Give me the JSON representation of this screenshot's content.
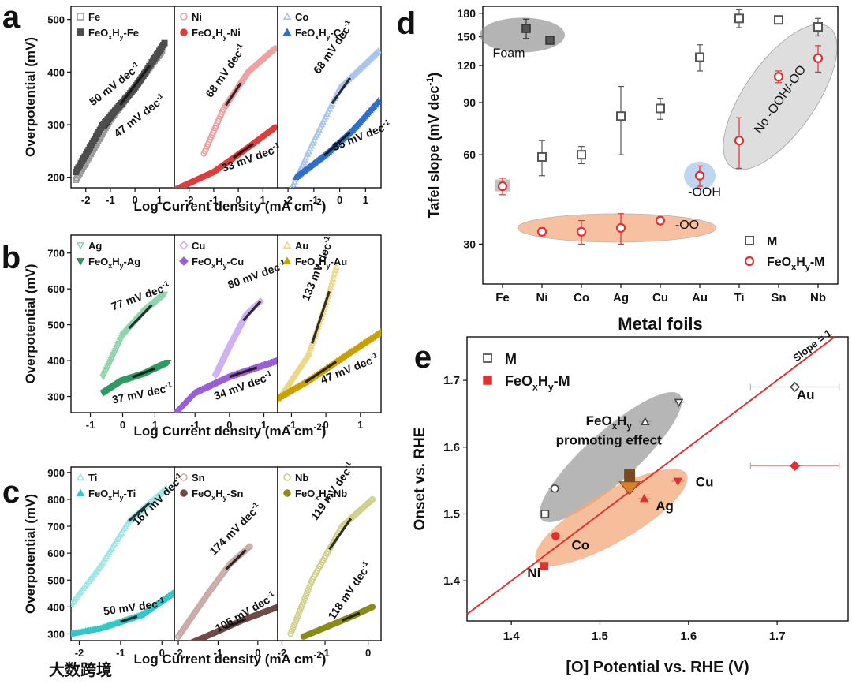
{
  "panels": [
    {
      "letter": "a",
      "ylabel": "Overpotential (mV)",
      "xlabel": "Log Current density (mA cm⁻²)",
      "yticks": [
        200,
        300,
        400,
        500
      ],
      "ylim": [
        180,
        525
      ],
      "subplots": [
        {
          "m": "Fe",
          "f": "FeOxHy-Fe",
          "c": "#4d4d4d",
          "cl": "#9a9a9a",
          "xlim": [
            -2.6,
            1.6
          ],
          "xticks": [
            -2,
            -1,
            0,
            1
          ],
          "s1": {
            "x": [
              -2.4,
              -1.0,
              0.3,
              1.1
            ],
            "y": [
              195,
              310,
              390,
              440
            ]
          },
          "s2": {
            "x": [
              -2.4,
              -1.3,
              0.0,
              1.2
            ],
            "y": [
              210,
              300,
              370,
              455
            ]
          },
          "lab1": {
            "t": "50 mV dec⁻¹",
            "x": -1.7,
            "y": 335,
            "a": -38
          },
          "lab2": {
            "t": "47 mV dec⁻¹",
            "x": -0.7,
            "y": 275,
            "a": -38
          },
          "fit1": [
            -1.2,
            0.0
          ],
          "fit2": [
            -0.6,
            0.6
          ]
        },
        {
          "m": "Ni",
          "f": "FeOxHy-Ni",
          "c": "#e03c3c",
          "cl": "#f0a0a0",
          "xlim": [
            -2.6,
            1.6
          ],
          "xticks": [
            -2,
            -1,
            0,
            1
          ],
          "s1": {
            "x": [
              -1.4,
              -0.6,
              0.4,
              1.5
            ],
            "y": [
              245,
              330,
              400,
              445
            ]
          },
          "s2": {
            "x": [
              -2.5,
              -1.0,
              0.5,
              1.5
            ],
            "y": [
              178,
              210,
              260,
              295
            ]
          },
          "lab1": {
            "t": "68 mV dec⁻¹",
            "x": -1.1,
            "y": 350,
            "a": -55
          },
          "lab2": {
            "t": "33 mV dec⁻¹",
            "x": -0.6,
            "y": 210,
            "a": -20
          },
          "fit1": [
            -0.5,
            0.1
          ],
          "fit2": [
            -0.2,
            0.6
          ]
        },
        {
          "m": "Co",
          "f": "FeOxHy-Co",
          "c": "#2e6fcc",
          "cl": "#a8c4ec",
          "xlim": [
            -2.4,
            1.6
          ],
          "xticks": [
            -2,
            -1,
            0,
            1
          ],
          "s1": {
            "x": [
              -2.0,
              -1.0,
              0.0,
              1.5
            ],
            "y": [
              165,
              270,
              370,
              440
            ]
          },
          "s2": {
            "x": [
              -1.7,
              -0.5,
              0.5,
              1.5
            ],
            "y": [
              200,
              245,
              290,
              345
            ]
          },
          "lab1": {
            "t": "68 mV dec⁻¹",
            "x": -0.8,
            "y": 395,
            "a": -55
          },
          "lab2": {
            "t": "35 mV dec⁻¹",
            "x": -0.2,
            "y": 250,
            "a": -22
          },
          "fit1": [
            -0.3,
            0.4
          ],
          "fit2": [
            -0.6,
            0.4
          ]
        }
      ]
    },
    {
      "letter": "b",
      "ylabel": "Overpotential (mV)",
      "xlabel": "Log Current density (mA cm⁻²)",
      "yticks": [
        300,
        400,
        500,
        600,
        700
      ],
      "ylim": [
        255,
        750
      ],
      "subplots": [
        {
          "m": "Ag",
          "f": "FeOxHy-Ag",
          "c": "#2e9960",
          "cl": "#8fd4ad",
          "xlim": [
            -1.6,
            1.6
          ],
          "xticks": [
            -1,
            0,
            1
          ],
          "s1": {
            "x": [
              -0.6,
              0.0,
              0.7,
              1.3
            ],
            "y": [
              355,
              470,
              540,
              585
            ]
          },
          "s2": {
            "x": [
              -0.6,
              0.0,
              0.7,
              1.4
            ],
            "y": [
              310,
              345,
              365,
              395
            ]
          },
          "lab1": {
            "t": "77 mV dec⁻¹",
            "x": -0.3,
            "y": 540,
            "a": -20
          },
          "lab2": {
            "t": "37 mV dec⁻¹",
            "x": -0.3,
            "y": 280,
            "a": -12
          },
          "fit1": [
            0.2,
            0.9
          ],
          "fit2": [
            0.3,
            1.0
          ]
        },
        {
          "m": "Cu",
          "f": "FeOxHy-Cu",
          "c": "#9a5fd6",
          "cl": "#cfb0f0",
          "xlim": [
            -1.6,
            1.4
          ],
          "xticks": [
            -1,
            0,
            1
          ],
          "s1": {
            "x": [
              -0.4,
              0.0,
              0.5,
              0.9
            ],
            "y": [
              360,
              440,
              530,
              565
            ]
          },
          "s2": {
            "x": [
              -1.6,
              -1.0,
              0.0,
              1.4
            ],
            "y": [
              250,
              310,
              355,
              400
            ]
          },
          "lab1": {
            "t": "80 mV dec⁻¹",
            "x": 0.0,
            "y": 600,
            "a": -20
          },
          "lab2": {
            "t": "34 mV dec⁻¹",
            "x": -0.4,
            "y": 290,
            "a": -20
          },
          "fit1": [
            0.4,
            0.9
          ],
          "fit2": [
            0.0,
            0.8
          ]
        },
        {
          "m": "Au",
          "f": "FeOxHy-Au",
          "c": "#c9a000",
          "cl": "#ead788",
          "xlim": [
            -1.4,
            1.6
          ],
          "xticks": [
            -1,
            0,
            1
          ],
          "s1": {
            "x": [
              -1.4,
              -0.5,
              0.0,
              0.3
            ],
            "y": [
              290,
              420,
              560,
              660
            ]
          },
          "s2": {
            "x": [
              -1.4,
              -0.5,
              0.5,
              1.6
            ],
            "y": [
              295,
              345,
              410,
              480
            ]
          },
          "lab1": {
            "t": "133 mV dec⁻¹",
            "x": -0.5,
            "y": 565,
            "a": -68
          },
          "lab2": {
            "t": "47 mV dec⁻¹",
            "x": -0.1,
            "y": 335,
            "a": -22
          },
          "fit1": [
            -0.4,
            0.1
          ],
          "fit2": [
            -0.6,
            0.3
          ]
        }
      ]
    },
    {
      "letter": "c",
      "ylabel": "Overpotential (mV)",
      "xlabel": "Log Current density (mA cm⁻²)",
      "yticks": [
        300,
        400,
        500,
        600,
        700,
        800,
        900
      ],
      "ylim": [
        275,
        920
      ],
      "subplots": [
        {
          "m": "Ti",
          "f": "FeOxHy-Ti",
          "c": "#33c7c7",
          "cl": "#9ee5e5",
          "xlim": [
            -2.2,
            0.3
          ],
          "xticks": [
            -2,
            -1,
            0
          ],
          "s1": {
            "x": [
              -2.2,
              -1.5,
              -0.8,
              0.1
            ],
            "y": [
              410,
              550,
              720,
              840
            ]
          },
          "s2": {
            "x": [
              -2.2,
              -1.5,
              -0.5,
              0.3
            ],
            "y": [
              300,
              320,
              370,
              455
            ]
          },
          "lab1": {
            "t": "167 mV dec⁻¹",
            "x": -0.6,
            "y": 700,
            "a": -45
          },
          "lab2": {
            "t": "50 mV dec⁻¹",
            "x": -1.4,
            "y": 370,
            "a": -8
          },
          "fit1": [
            -0.8,
            -0.3
          ],
          "fit2": [
            -1.0,
            -0.6
          ]
        },
        {
          "m": "Sn",
          "f": "FeOxHy-Sn",
          "c": "#6e4a48",
          "cl": "#c9aaa8",
          "xlim": [
            -2.1,
            0.5
          ],
          "xticks": [
            -2,
            -1,
            0
          ],
          "s1": {
            "x": [
              -2.0,
              -1.3,
              -0.7,
              -0.2
            ],
            "y": [
              290,
              440,
              560,
              625
            ]
          },
          "s2": {
            "x": [
              -1.7,
              -1.0,
              -0.4,
              0.5
            ],
            "y": [
              265,
              310,
              350,
              400
            ]
          },
          "lab1": {
            "t": "174 mV dec⁻¹",
            "x": -1.1,
            "y": 590,
            "a": -45
          },
          "lab2": {
            "t": "106 mV dec⁻¹",
            "x": -1.0,
            "y": 305,
            "a": -30
          },
          "fit1": [
            -0.8,
            -0.3
          ],
          "fit2": [
            -0.8,
            -0.3
          ]
        },
        {
          "m": "Nb",
          "f": "FeOxHy-Nb",
          "c": "#8b8b1a",
          "cl": "#cfcf8a",
          "xlim": [
            -2.1,
            0.3
          ],
          "xticks": [
            -2,
            -1,
            0
          ],
          "s1": {
            "x": [
              -1.8,
              -1.3,
              -0.6,
              0.1
            ],
            "y": [
              300,
              500,
              700,
              800
            ]
          },
          "s2": {
            "x": [
              -1.5,
              -0.9,
              -0.3,
              0.1
            ],
            "y": [
              290,
              330,
              370,
              400
            ]
          },
          "lab1": {
            "t": "119 mV dec⁻¹",
            "x": -1.2,
            "y": 720,
            "a": -55
          },
          "lab2": {
            "t": "118 mV dec⁻¹",
            "x": -0.8,
            "y": 350,
            "a": -55
          },
          "fit1": [
            -0.9,
            -0.4
          ],
          "fit2": [
            -0.6,
            -0.2
          ]
        }
      ]
    }
  ],
  "panel_d": {
    "letter": "d",
    "ylabel": "Tafel slope (mV dec⁻¹)",
    "xlabel": "Metal foils",
    "categories": [
      "Fe",
      "Ni",
      "Co",
      "Ag",
      "Cu",
      "Au",
      "Ti",
      "Sn",
      "Nb"
    ],
    "yticks": [
      30,
      60,
      90,
      120,
      150,
      180
    ],
    "ylim": [
      22,
      190
    ],
    "legend": [
      {
        "label": "M",
        "color": "#555555"
      },
      {
        "label": "FeOxHy-M",
        "color": "#e03030"
      }
    ],
    "M": [
      {
        "c": "Ni",
        "v": 59,
        "e": 8
      },
      {
        "c": "Co",
        "v": 60,
        "e": 4
      },
      {
        "c": "Ag",
        "v": 81,
        "e": 21
      },
      {
        "c": "Cu",
        "v": 86,
        "e": 7
      },
      {
        "c": "Au",
        "v": 128,
        "e": 13
      },
      {
        "c": "Ti",
        "v": 173,
        "e": 12
      },
      {
        "c": "Sn",
        "v": 171,
        "e": 2
      },
      {
        "c": "Nb",
        "v": 162,
        "e": 11
      }
    ],
    "Foam": [
      {
        "x": 0.6,
        "v": 160,
        "e": 12
      },
      {
        "x": 1.2,
        "v": 146,
        "e": 2
      }
    ],
    "F": [
      {
        "c": "Fe",
        "v": 47,
        "e": 3
      },
      {
        "c": "Ni",
        "v": 33,
        "e": 1
      },
      {
        "c": "Co",
        "v": 33,
        "e": 3
      },
      {
        "c": "Ag",
        "v": 34,
        "e": 4
      },
      {
        "c": "Cu",
        "v": 36,
        "e": 1
      },
      {
        "c": "Au",
        "v": 51,
        "e": 4
      },
      {
        "c": "Ti",
        "v": 67,
        "e": 13
      },
      {
        "c": "Sn",
        "v": 110,
        "e": 5
      },
      {
        "c": "Nb",
        "v": 127,
        "e": 13
      }
    ],
    "annotations": {
      "foam": "Foam",
      "ooh": "-OOH",
      "oo": "-OO",
      "nooh": "No -OOH/-OO"
    }
  },
  "panel_e": {
    "letter": "e",
    "ylabel": "Onset vs. RHE",
    "xlabel": "[O] Potential vs. RHE (V)",
    "xticks": [
      1.4,
      1.5,
      1.6,
      1.7
    ],
    "yticks": [
      1.4,
      1.5,
      1.6,
      1.7
    ],
    "xlim": [
      1.35,
      1.78
    ],
    "ylim": [
      1.34,
      1.765
    ],
    "legend": [
      {
        "label": "M",
        "color": "#555555"
      },
      {
        "label": "FeOxHy-M",
        "color": "#e03030"
      }
    ],
    "slope_label": "Slope = 1",
    "effect_label_1": "FeOxHy",
    "effect_label_2": "promoting effect",
    "M": [
      {
        "x": 1.438,
        "y": 1.5,
        "s": "square"
      },
      {
        "x": 1.449,
        "y": 1.538,
        "s": "circle"
      },
      {
        "x": 1.551,
        "y": 1.638,
        "s": "triangle"
      },
      {
        "x": 1.589,
        "y": 1.667,
        "s": "tridown"
      },
      {
        "x": 1.72,
        "y": 1.69,
        "s": "diamond",
        "ex": 0.05
      }
    ],
    "F": [
      {
        "x": 1.437,
        "y": 1.422,
        "s": "square"
      },
      {
        "x": 1.45,
        "y": 1.467,
        "s": "circle"
      },
      {
        "x": 1.55,
        "y": 1.523,
        "s": "triangle"
      },
      {
        "x": 1.588,
        "y": 1.549,
        "s": "tridown"
      },
      {
        "x": 1.72,
        "y": 1.572,
        "s": "diamond",
        "ex": 0.05
      }
    ],
    "labels": [
      {
        "t": "Au",
        "x": 1.722,
        "y": 1.672
      },
      {
        "t": "Cu",
        "x": 1.608,
        "y": 1.541
      },
      {
        "t": "Ag",
        "x": 1.563,
        "y": 1.505
      },
      {
        "t": "Co",
        "x": 1.468,
        "y": 1.447
      },
      {
        "t": "Ni",
        "x": 1.418,
        "y": 1.405
      }
    ]
  },
  "watermark": "大数跨境"
}
